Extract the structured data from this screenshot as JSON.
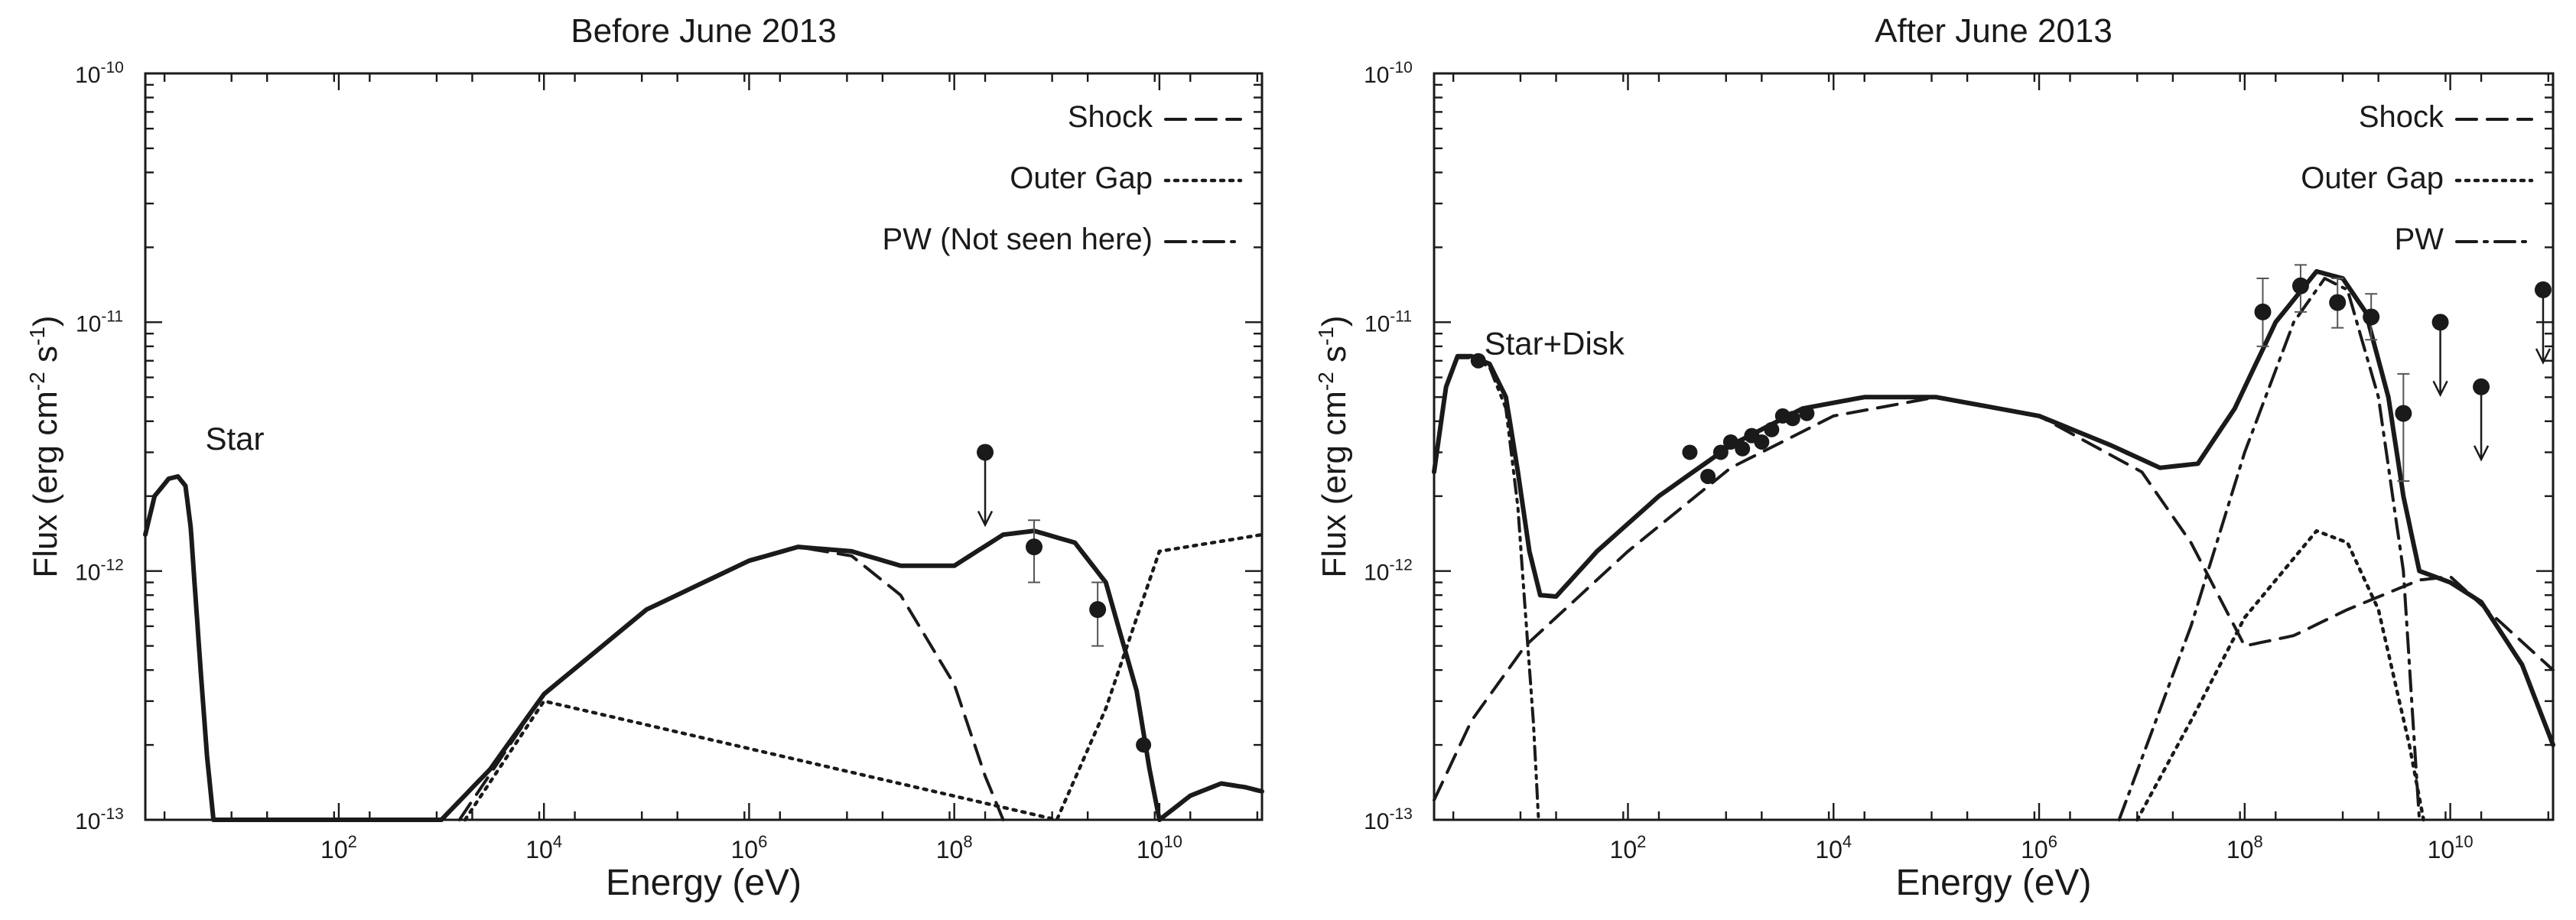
{
  "chart_data": [
    {
      "type": "line",
      "title": "Before June 2013",
      "xlabel": "Energy (eV)",
      "ylabel": "Flux (erg cm",
      "ylabel_sup1": "-2",
      "ylabel_mid": " s",
      "ylabel_sup2": "-1",
      "ylabel_end": ")",
      "xscale": "log",
      "yscale": "log",
      "xlim": [
        1.3,
        100000000000.0
      ],
      "ylim": [
        1e-13,
        1e-10
      ],
      "xticks": [
        {
          "value": 100,
          "base": "10",
          "exp": "2"
        },
        {
          "value": 10000,
          "base": "10",
          "exp": "4"
        },
        {
          "value": 1000000,
          "base": "10",
          "exp": "6"
        },
        {
          "value": 100000000,
          "base": "10",
          "exp": "8"
        },
        {
          "value": 10000000000,
          "base": "10",
          "exp": "10"
        }
      ],
      "yticks": [
        {
          "value": 1e-13,
          "base": "10",
          "exp": "-13"
        },
        {
          "value": 1e-12,
          "base": "10",
          "exp": "-12"
        },
        {
          "value": 1e-11,
          "base": "10",
          "exp": "-11"
        },
        {
          "value": 1e-10,
          "base": "10",
          "exp": "-10"
        }
      ],
      "annotations": [
        {
          "text": "Star",
          "x": 5,
          "y": 3.4e-12
        }
      ],
      "legend": [
        "Shock",
        "Outer Gap",
        "PW (Not seen here)"
      ],
      "series": [
        {
          "name": "Total",
          "style": "solid",
          "points": [
            [
              1.3,
              1.4e-12
            ],
            [
              1.6,
              2e-12
            ],
            [
              2.2,
              2.35e-12
            ],
            [
              2.7,
              2.4e-12
            ],
            [
              3.2,
              2.2e-12
            ],
            [
              3.6,
              1.5e-12
            ],
            [
              4.0,
              8e-13
            ],
            [
              4.5,
              4e-13
            ],
            [
              5.2,
              1.8e-13
            ],
            [
              6.0,
              1e-13
            ],
            [
              1000,
              1e-13
            ],
            [
              3000,
              1.6e-13
            ],
            [
              10000,
              3.2e-13
            ],
            [
              100000,
              7e-13
            ],
            [
              1000000,
              1.1e-12
            ],
            [
              3000000,
              1.25e-12
            ],
            [
              10000000,
              1.2e-12
            ],
            [
              30000000,
              1.05e-12
            ],
            [
              100000000,
              1.05e-12
            ],
            [
              300000000,
              1.4e-12
            ],
            [
              600000000,
              1.45e-12
            ],
            [
              1500000000,
              1.3e-12
            ],
            [
              3000000000,
              9e-13
            ],
            [
              6000000000,
              3.3e-13
            ],
            [
              8000000000,
              1.6e-13
            ],
            [
              10000000000,
              1e-13
            ],
            [
              20000000000,
              1.25e-13
            ],
            [
              40000000000,
              1.4e-13
            ],
            [
              70000000000,
              1.35e-13
            ],
            [
              100000000000,
              1.3e-13
            ]
          ]
        },
        {
          "name": "Shock",
          "style": "dash",
          "points": [
            [
              1500,
              1e-13
            ],
            [
              10000,
              3.2e-13
            ],
            [
              100000,
              7e-13
            ],
            [
              1000000,
              1.1e-12
            ],
            [
              3000000,
              1.25e-12
            ],
            [
              10000000,
              1.15e-12
            ],
            [
              30000000,
              8e-13
            ],
            [
              100000000,
              3.5e-13
            ],
            [
              200000000,
              1.5e-13
            ],
            [
              300000000,
              1e-13
            ]
          ]
        },
        {
          "name": "Outer Gap",
          "style": "dot",
          "points": [
            [
              1700,
              1e-13
            ],
            [
              10000,
              3e-13
            ],
            [
              1000000000,
              1e-13
            ],
            [
              3000000000,
              2.8e-13
            ],
            [
              10000000000,
              1.2e-12
            ],
            [
              100000000000,
              1.4e-12
            ]
          ]
        }
      ],
      "points": [
        {
          "x": 600000000,
          "y": 1.25e-12,
          "ylo": 9e-13,
          "yhi": 1.6e-12
        },
        {
          "x": 2500000000,
          "y": 7e-13,
          "ylo": 5e-13,
          "yhi": 9e-13
        },
        {
          "x": 7000000000,
          "y": 2e-13
        }
      ],
      "upper_limits": [
        {
          "x": 200000000,
          "y": 3e-12
        }
      ]
    },
    {
      "type": "line",
      "title": "After June 2013",
      "xlabel": "Energy (eV)",
      "ylabel": "Flux (erg cm",
      "ylabel_sup1": "-2",
      "ylabel_mid": " s",
      "ylabel_sup2": "-1",
      "ylabel_end": ")",
      "xscale": "log",
      "yscale": "log",
      "xlim": [
        1.3,
        100000000000.0
      ],
      "ylim": [
        1e-13,
        1e-10
      ],
      "xticks": [
        {
          "value": 100,
          "base": "10",
          "exp": "2"
        },
        {
          "value": 10000,
          "base": "10",
          "exp": "4"
        },
        {
          "value": 1000000,
          "base": "10",
          "exp": "6"
        },
        {
          "value": 100000000,
          "base": "10",
          "exp": "8"
        },
        {
          "value": 10000000000,
          "base": "10",
          "exp": "10"
        }
      ],
      "yticks": [
        {
          "value": 1e-13,
          "base": "10",
          "exp": "-13"
        },
        {
          "value": 1e-12,
          "base": "10",
          "exp": "-12"
        },
        {
          "value": 1e-11,
          "base": "10",
          "exp": "-11"
        },
        {
          "value": 1e-10,
          "base": "10",
          "exp": "-10"
        }
      ],
      "annotations": [
        {
          "text": "Star+Disk",
          "x": 4,
          "y": 8.2e-12
        }
      ],
      "legend": [
        "Shock",
        "Outer Gap",
        "PW"
      ],
      "series": [
        {
          "name": "Total",
          "style": "solid",
          "points": [
            [
              1.3,
              2.5e-12
            ],
            [
              1.7,
              5.5e-12
            ],
            [
              2.2,
              7.3e-12
            ],
            [
              3.0,
              7.3e-12
            ],
            [
              4.5,
              6.8e-12
            ],
            [
              6.5,
              5e-12
            ],
            [
              8.5,
              2.5e-12
            ],
            [
              11,
              1.2e-12
            ],
            [
              14,
              8e-13
            ],
            [
              20,
              7.9e-13
            ],
            [
              50,
              1.2e-12
            ],
            [
              200,
              2e-12
            ],
            [
              1000,
              3.2e-12
            ],
            [
              5000,
              4.5e-12
            ],
            [
              20000,
              5e-12
            ],
            [
              100000,
              5e-12
            ],
            [
              1000000,
              4.2e-12
            ],
            [
              5000000,
              3.2e-12
            ],
            [
              15000000,
              2.6e-12
            ],
            [
              35000000,
              2.7e-12
            ],
            [
              80000000,
              4.5e-12
            ],
            [
              200000000,
              1e-11
            ],
            [
              500000000,
              1.6e-11
            ],
            [
              900000000,
              1.5e-11
            ],
            [
              1500000000,
              1.1e-11
            ],
            [
              2500000000,
              5e-12
            ],
            [
              3500000000,
              2e-12
            ],
            [
              5000000000,
              1e-12
            ],
            [
              10000000000,
              9e-13
            ],
            [
              20000000000,
              7.5e-13
            ],
            [
              50000000000,
              4.2e-13
            ],
            [
              100000000000,
              2e-13
            ]
          ]
        },
        {
          "name": "Shock",
          "style": "dash",
          "points": [
            [
              1.3,
              1.2e-13
            ],
            [
              3,
              2.5e-13
            ],
            [
              10,
              5e-13
            ],
            [
              100,
              1.2e-12
            ],
            [
              1000,
              2.6e-12
            ],
            [
              10000,
              4.2e-12
            ],
            [
              100000,
              5e-12
            ],
            [
              1000000,
              4.2e-12
            ],
            [
              10000000,
              2.5e-12
            ],
            [
              30000000,
              1.3e-12
            ],
            [
              100000000,
              5e-13
            ],
            [
              300000000,
              5.5e-13
            ],
            [
              1000000000,
              7e-13
            ],
            [
              5000000000,
              9.2e-13
            ],
            [
              10000000000,
              9.5e-13
            ],
            [
              100000000000,
              4e-13
            ]
          ]
        },
        {
          "name": "Outer Gap",
          "style": "dot",
          "points": [
            [
              9000000,
              1e-13
            ],
            [
              30000000,
              2.5e-13
            ],
            [
              100000000,
              6.5e-13
            ],
            [
              500000000,
              1.45e-12
            ],
            [
              1000000000,
              1.3e-12
            ],
            [
              2000000000,
              7e-13
            ],
            [
              4000000000,
              2e-13
            ],
            [
              5500000000,
              1e-13
            ]
          ]
        },
        {
          "name": "PW",
          "style": "dashdot",
          "points": [
            [
              6000000,
              1e-13
            ],
            [
              30000000,
              6e-13
            ],
            [
              100000000,
              3e-12
            ],
            [
              300000000,
              1e-11
            ],
            [
              600000000,
              1.5e-11
            ],
            [
              1000000000,
              1.35e-11
            ],
            [
              2000000000,
              5e-12
            ],
            [
              3500000000,
              1e-12
            ],
            [
              5000000000,
              1e-13
            ]
          ]
        },
        {
          "name": "Star+Disk",
          "style": "dashdotdot",
          "points": [
            [
              1.3,
              2.5e-12
            ],
            [
              1.7,
              5.5e-12
            ],
            [
              2.2,
              7.2e-12
            ],
            [
              3.0,
              7.2e-12
            ],
            [
              4.5,
              6.6e-12
            ],
            [
              6.5,
              4.5e-12
            ],
            [
              8.5,
              1.8e-12
            ],
            [
              10,
              7e-13
            ],
            [
              12,
              2.5e-13
            ],
            [
              13.5,
              1e-13
            ]
          ]
        }
      ],
      "points": [
        {
          "x": 3.5,
          "y": 7e-12
        },
        {
          "x": 400,
          "y": 3e-12
        },
        {
          "x": 600,
          "y": 2.4e-12
        },
        {
          "x": 800,
          "y": 3e-12
        },
        {
          "x": 1000,
          "y": 3.3e-12
        },
        {
          "x": 1300,
          "y": 3.1e-12
        },
        {
          "x": 1600,
          "y": 3.5e-12
        },
        {
          "x": 2000,
          "y": 3.3e-12
        },
        {
          "x": 2500,
          "y": 3.7e-12
        },
        {
          "x": 3200,
          "y": 4.2e-12
        },
        {
          "x": 4000,
          "y": 4.1e-12
        },
        {
          "x": 5500,
          "y": 4.3e-12
        },
        {
          "x": 150000000,
          "y": 1.1e-11,
          "ylo": 8e-12,
          "yhi": 1.5e-11
        },
        {
          "x": 350000000,
          "y": 1.4e-11,
          "ylo": 1.1e-11,
          "yhi": 1.7e-11
        },
        {
          "x": 800000000,
          "y": 1.2e-11,
          "ylo": 9.5e-12,
          "yhi": 1.5e-11
        },
        {
          "x": 1700000000,
          "y": 1.05e-11,
          "ylo": 8.5e-12,
          "yhi": 1.3e-11
        },
        {
          "x": 3500000000,
          "y": 4.3e-12,
          "ylo": 2.3e-12,
          "yhi": 6.2e-12
        }
      ],
      "upper_limits": [
        {
          "x": 8000000000,
          "y": 1e-11
        },
        {
          "x": 20000000000,
          "y": 5.5e-12
        },
        {
          "x": 80000000000,
          "y": 1.35e-11
        }
      ]
    }
  ]
}
